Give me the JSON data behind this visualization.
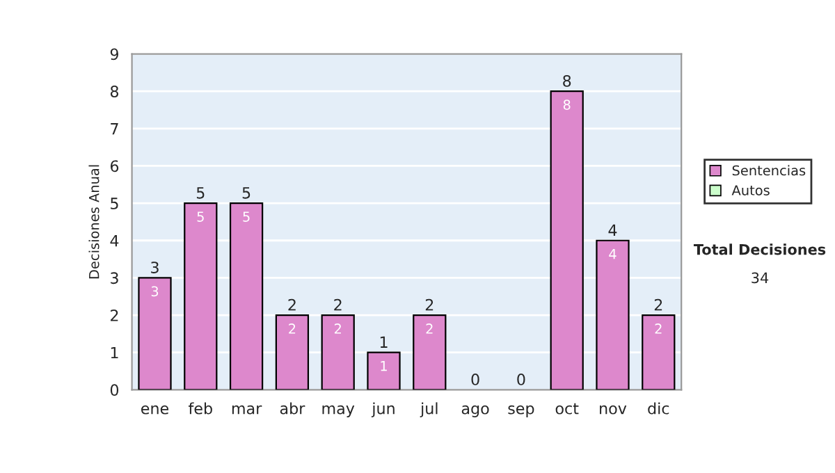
{
  "chart_data": {
    "type": "bar",
    "ylabel": "Decisiones Anual",
    "categories": [
      "ene",
      "feb",
      "mar",
      "abr",
      "may",
      "jun",
      "jul",
      "ago",
      "sep",
      "oct",
      "nov",
      "dic"
    ],
    "series": [
      {
        "name": "Sentencias",
        "color": "#dd88cc",
        "values": [
          3,
          5,
          5,
          2,
          2,
          1,
          2,
          0,
          0,
          8,
          4,
          2
        ],
        "value_labels": [
          "3",
          "5",
          "5",
          "2",
          "2",
          "1",
          "2",
          null,
          null,
          "8",
          "4",
          "2"
        ]
      },
      {
        "name": "Autos",
        "color": "#ccffcc",
        "values": [
          0,
          0,
          0,
          0,
          0,
          0,
          0,
          0,
          0,
          0,
          0,
          0
        ]
      }
    ],
    "stacked": true,
    "totals": [
      "3",
      "5",
      "5",
      "2",
      "2",
      "1",
      "2",
      "0",
      "0",
      "8",
      "4",
      "2"
    ],
    "ylim": [
      0,
      9
    ],
    "yticks": [
      0,
      1,
      2,
      3,
      4,
      5,
      6,
      7,
      8,
      9
    ],
    "grid": "y",
    "legend": "right",
    "annotations": [
      "Total Decisiones",
      "34"
    ]
  }
}
